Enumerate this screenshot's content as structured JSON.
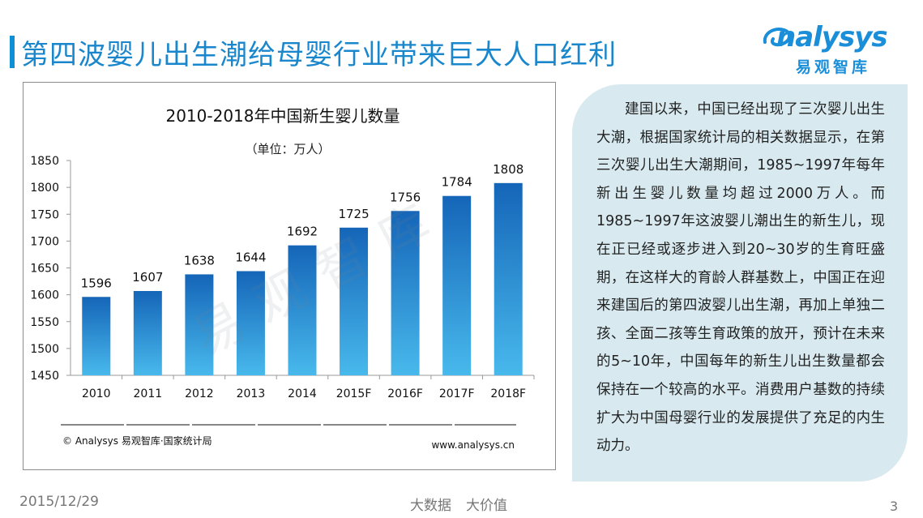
{
  "page": {
    "title": "第四波婴儿出生潮给母婴行业带来巨大人口红利",
    "date": "2015/12/29",
    "footer_left": "大数据",
    "footer_right": "大价值",
    "page_number": "3",
    "watermark": "易观智库"
  },
  "logo": {
    "brand": "nalysys",
    "brand_cn": "易观智库"
  },
  "chart_data": {
    "type": "bar",
    "title": "2010-2018年中国新生婴儿数量",
    "subtitle": "（单位：万人）",
    "categories": [
      "2010",
      "2011",
      "2012",
      "2013",
      "2014",
      "2015F",
      "2016F",
      "2017F",
      "2018F"
    ],
    "values": [
      1596,
      1607,
      1638,
      1644,
      1692,
      1725,
      1756,
      1784,
      1808
    ],
    "y_ticks": [
      1450,
      1500,
      1550,
      1600,
      1650,
      1700,
      1750,
      1800,
      1850
    ],
    "ylim": [
      1450,
      1850
    ],
    "grid": false,
    "bar_color_top": "#1565b8",
    "bar_color_bottom": "#48b9ec",
    "source": "© Analysys 易观智库·国家统计局",
    "website": "www.analysys.cn"
  },
  "side_text": "建国以来，中国已经出现了三次婴儿出生大潮，根据国家统计局的相关数据显示，在第三次婴儿出生大潮期间，1985~1997年每年新出生婴儿数量均超过2000万人。而1985~1997年这波婴儿潮出生的新生儿，现在正已经或逐步进入到20~30岁的生育旺盛期，在这样大的育龄人群基数上，中国正在迎来建国后的第四波婴儿出生潮，再加上单独二孩、全面二孩等生育政策的放开，预计在未来的5~10年，中国每年的新生儿出生数量都会保持在一个较高的水平。消费用户基数的持续扩大为中国母婴行业的发展提供了充足的内生动力。"
}
